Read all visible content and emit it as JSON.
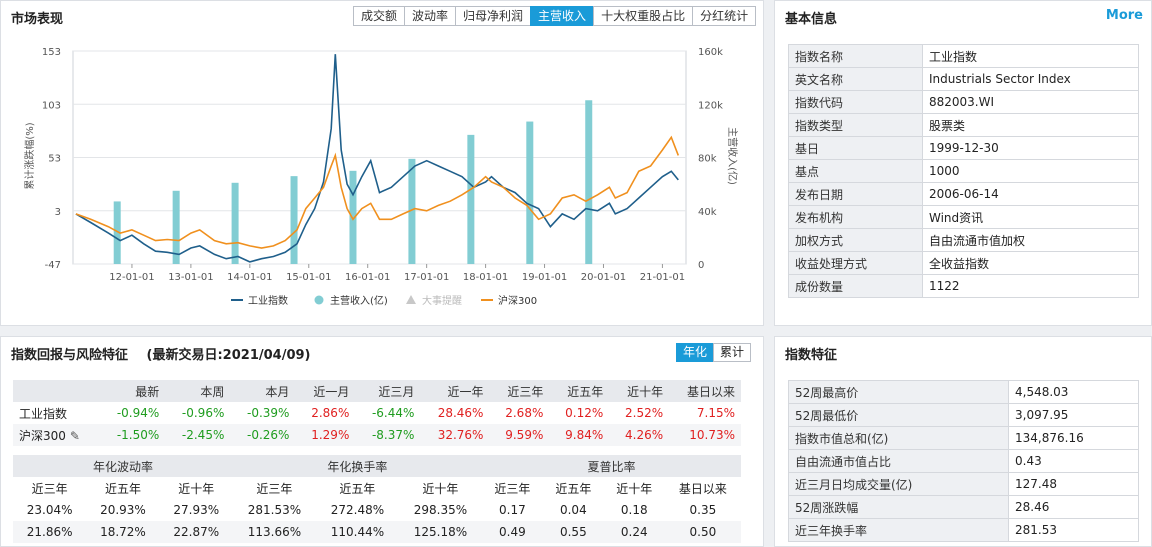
{
  "market": {
    "title": "市场表现",
    "tabs": [
      "成交额",
      "波动率",
      "归母净利润",
      "主营收入",
      "十大权重股占比",
      "分红统计"
    ],
    "active_tab": 3
  },
  "chart_data": {
    "type": "line",
    "x_ticks": [
      "12-01-01",
      "13-01-01",
      "14-01-01",
      "15-01-01",
      "16-01-01",
      "17-01-01",
      "18-01-01",
      "19-01-01",
      "20-01-01",
      "21-01-01"
    ],
    "ylabel_left": "累计涨跌幅(%)",
    "ylabel_right": "主营收入(亿)",
    "yticks_left": [
      "153",
      "103",
      "53",
      "3",
      "-47"
    ],
    "yticks_right": [
      "160k",
      "120k",
      "80k",
      "40k",
      "0"
    ],
    "ylim_left": [
      -47,
      153
    ],
    "ylim_right": [
      0,
      160000
    ],
    "legend": [
      "工业指数",
      "主营收入(亿)",
      "大事提醒",
      "沪深300"
    ],
    "colors": {
      "index": "#1f5f8b",
      "revenue": "#82cdd3",
      "event": "#c8c8c8",
      "hs300": "#f0901e"
    },
    "bars": {
      "name": "主营收入(亿)",
      "x": [
        2011.75,
        2012.75,
        2013.75,
        2014.75,
        2015.75,
        2016.75,
        2017.75,
        2018.75,
        2019.75
      ],
      "values": [
        47000,
        55000,
        61000,
        66000,
        70000,
        79000,
        97000,
        107000,
        123000
      ]
    },
    "series": [
      {
        "name": "工业指数",
        "x": [
          2011.05,
          2011.3,
          2011.6,
          2011.8,
          2012.0,
          2012.2,
          2012.4,
          2012.6,
          2012.8,
          2013.0,
          2013.15,
          2013.4,
          2013.6,
          2013.8,
          2014.0,
          2014.2,
          2014.4,
          2014.6,
          2014.8,
          2014.95,
          2015.1,
          2015.25,
          2015.38,
          2015.45,
          2015.55,
          2015.65,
          2015.75,
          2015.9,
          2016.05,
          2016.2,
          2016.4,
          2016.6,
          2016.8,
          2017.0,
          2017.2,
          2017.4,
          2017.6,
          2017.8,
          2018.0,
          2018.1,
          2018.3,
          2018.5,
          2018.7,
          2018.9,
          2019.1,
          2019.3,
          2019.5,
          2019.7,
          2019.9,
          2020.1,
          2020.2,
          2020.4,
          2020.6,
          2020.8,
          2021.0,
          2021.15,
          2021.27
        ],
        "values": [
          0,
          -8,
          -18,
          -25,
          -20,
          -28,
          -35,
          -36,
          -38,
          -32,
          -30,
          -38,
          -42,
          -40,
          -45,
          -42,
          -40,
          -36,
          -28,
          -10,
          5,
          30,
          80,
          150,
          60,
          28,
          18,
          35,
          50,
          20,
          25,
          35,
          45,
          50,
          45,
          40,
          35,
          25,
          30,
          35,
          25,
          20,
          10,
          5,
          -12,
          0,
          -5,
          5,
          3,
          10,
          0,
          5,
          15,
          25,
          35,
          40,
          32
        ]
      },
      {
        "name": "沪深300",
        "x": [
          2011.05,
          2011.3,
          2011.6,
          2011.8,
          2012.0,
          2012.2,
          2012.4,
          2012.6,
          2012.8,
          2013.0,
          2013.15,
          2013.4,
          2013.6,
          2013.8,
          2014.0,
          2014.2,
          2014.4,
          2014.6,
          2014.8,
          2014.95,
          2015.1,
          2015.25,
          2015.38,
          2015.45,
          2015.55,
          2015.65,
          2015.75,
          2015.9,
          2016.05,
          2016.2,
          2016.4,
          2016.6,
          2016.8,
          2017.0,
          2017.2,
          2017.4,
          2017.6,
          2017.8,
          2018.0,
          2018.1,
          2018.3,
          2018.5,
          2018.7,
          2018.9,
          2019.1,
          2019.3,
          2019.5,
          2019.7,
          2019.9,
          2020.1,
          2020.2,
          2020.4,
          2020.6,
          2020.8,
          2021.0,
          2021.15,
          2021.27
        ],
        "values": [
          0,
          -5,
          -12,
          -18,
          -15,
          -20,
          -25,
          -24,
          -25,
          -18,
          -15,
          -25,
          -28,
          -27,
          -30,
          -32,
          -30,
          -25,
          -15,
          5,
          15,
          25,
          45,
          55,
          25,
          5,
          -5,
          5,
          10,
          -5,
          -5,
          0,
          5,
          3,
          8,
          12,
          18,
          25,
          35,
          30,
          25,
          15,
          8,
          -5,
          0,
          15,
          18,
          12,
          18,
          25,
          15,
          20,
          40,
          45,
          60,
          72,
          55
        ]
      }
    ]
  },
  "basic": {
    "title": "基本信息",
    "more": "More",
    "rows": [
      {
        "k": "指数名称",
        "v": "工业指数"
      },
      {
        "k": "英文名称",
        "v": "Industrials Sector Index"
      },
      {
        "k": "指数代码",
        "v": "882003.WI"
      },
      {
        "k": "指数类型",
        "v": "股票类"
      },
      {
        "k": "基日",
        "v": "1999-12-30"
      },
      {
        "k": "基点",
        "v": "1000"
      },
      {
        "k": "发布日期",
        "v": "2006-06-14"
      },
      {
        "k": "发布机构",
        "v": "Wind资讯"
      },
      {
        "k": "加权方式",
        "v": "自由流通市值加权"
      },
      {
        "k": "收益处理方式",
        "v": "全收益指数"
      },
      {
        "k": "成份数量",
        "v": "1122"
      }
    ]
  },
  "risk": {
    "title": "指数回报与风险特征",
    "date_label": "(最新交易日:2021/04/09)",
    "tabs": [
      "年化",
      "累计"
    ],
    "headers": [
      "",
      "最新",
      "本周",
      "本月",
      "近一月",
      "近三月",
      "近一年",
      "近三年",
      "近五年",
      "近十年",
      "基日以来"
    ],
    "rows": [
      {
        "name": "工业指数",
        "cells": [
          "-0.94%",
          "-0.96%",
          "-0.39%",
          "2.86%",
          "-6.44%",
          "28.46%",
          "2.68%",
          "0.12%",
          "2.52%",
          "7.15%"
        ]
      },
      {
        "name": "沪深300",
        "edit": "✎",
        "cells": [
          "-1.50%",
          "-2.45%",
          "-0.26%",
          "1.29%",
          "-8.37%",
          "32.76%",
          "9.59%",
          "9.84%",
          "4.26%",
          "10.73%"
        ]
      }
    ],
    "groups": [
      "年化波动率",
      "年化换手率",
      "夏普比率"
    ],
    "sub_headers": [
      "近三年",
      "近五年",
      "近十年",
      "近三年",
      "近五年",
      "近十年",
      "近三年",
      "近五年",
      "近十年",
      "基日以来"
    ],
    "rows2": [
      [
        "23.04%",
        "20.93%",
        "27.93%",
        "281.53%",
        "272.48%",
        "298.35%",
        "0.17",
        "0.04",
        "0.18",
        "0.35"
      ],
      [
        "21.86%",
        "18.72%",
        "22.87%",
        "113.66%",
        "110.44%",
        "125.18%",
        "0.49",
        "0.55",
        "0.24",
        "0.50"
      ]
    ]
  },
  "features": {
    "title": "指数特征",
    "rows": [
      {
        "k": "52周最高价",
        "v": "4,548.03"
      },
      {
        "k": "52周最低价",
        "v": "3,097.95"
      },
      {
        "k": "指数市值总和(亿)",
        "v": "134,876.16"
      },
      {
        "k": "自由流通市值占比",
        "v": "0.43"
      },
      {
        "k": "近三月日均成交量(亿)",
        "v": "127.48"
      },
      {
        "k": "52周涨跌幅",
        "v": "28.46"
      },
      {
        "k": "近三年换手率",
        "v": "281.53"
      }
    ]
  }
}
